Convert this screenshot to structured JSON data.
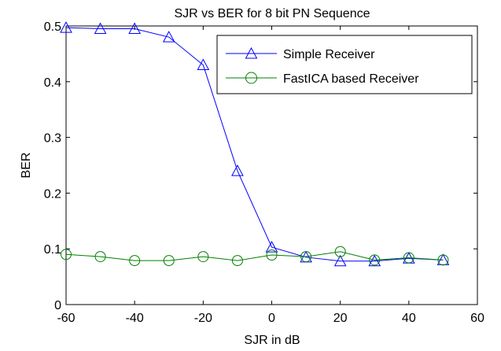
{
  "chart_data": {
    "type": "line",
    "title": "SJR vs BER for 8 bit PN Sequence",
    "xlabel": "SJR in dB",
    "ylabel": "BER",
    "xlim": [
      -60,
      60
    ],
    "ylim": [
      0,
      0.5
    ],
    "xticks": [
      -60,
      -40,
      -20,
      0,
      20,
      40,
      60
    ],
    "yticks": [
      0,
      0.1,
      0.2,
      0.3,
      0.4,
      0.5
    ],
    "xtick_labels": [
      "-60",
      "-40",
      "-20",
      "0",
      "20",
      "40",
      "60"
    ],
    "ytick_labels": [
      "0",
      "0.1",
      "0.2",
      "0.3",
      "0.4",
      "0.5"
    ],
    "grid": false,
    "legend_position": "top-right",
    "series": [
      {
        "name": "Simple Receiver",
        "color": "#0000ff",
        "marker": "triangle",
        "x": [
          -60,
          -50,
          -40,
          -30,
          -20,
          -10,
          0,
          10,
          20,
          30,
          40,
          50
        ],
        "y": [
          0.497,
          0.495,
          0.495,
          0.48,
          0.43,
          0.24,
          0.103,
          0.085,
          0.078,
          0.078,
          0.083,
          0.08
        ]
      },
      {
        "name": "FastICA based Receiver",
        "color": "#008000",
        "marker": "circle",
        "x": [
          -60,
          -50,
          -40,
          -30,
          -20,
          -10,
          0,
          10,
          20,
          30,
          40,
          50
        ],
        "y": [
          0.09,
          0.086,
          0.079,
          0.079,
          0.086,
          0.079,
          0.089,
          0.086,
          0.095,
          0.08,
          0.084,
          0.08
        ]
      }
    ]
  }
}
